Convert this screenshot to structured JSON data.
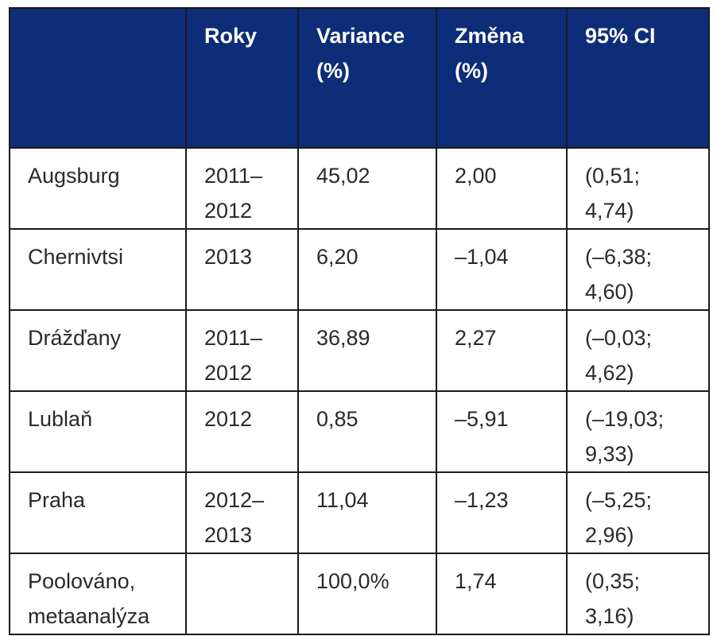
{
  "table": {
    "headers": [
      "",
      "Roky",
      "Variance\n(%)",
      "Změna\n(%)",
      "95% CI"
    ],
    "rows": [
      [
        "Augsburg",
        "2011–\n2012",
        "45,02",
        "2,00",
        "(0,51;\n4,74)"
      ],
      [
        "Chernivtsi",
        "2013",
        "6,20",
        "–1,04",
        "(–6,38;\n4,60)"
      ],
      [
        "Drážďany",
        "2011–\n2012",
        "36,89",
        "2,27",
        "(–0,03;\n4,62)"
      ],
      [
        "Lublaň",
        "2012",
        "0,85",
        "–5,91",
        "(–19,03;\n9,33)"
      ],
      [
        "Praha",
        "2012–\n2013",
        "11,04",
        "–1,23",
        "(–5,25;\n2,96)"
      ],
      [
        "Poolováno,\nmetaanalýza",
        "",
        "100,0%",
        "1,74",
        "(0,35;\n3,16)"
      ]
    ]
  },
  "colors": {
    "header_bg": "#0e2d78",
    "header_text": "#ffffff",
    "border": "#1a1a1a"
  }
}
